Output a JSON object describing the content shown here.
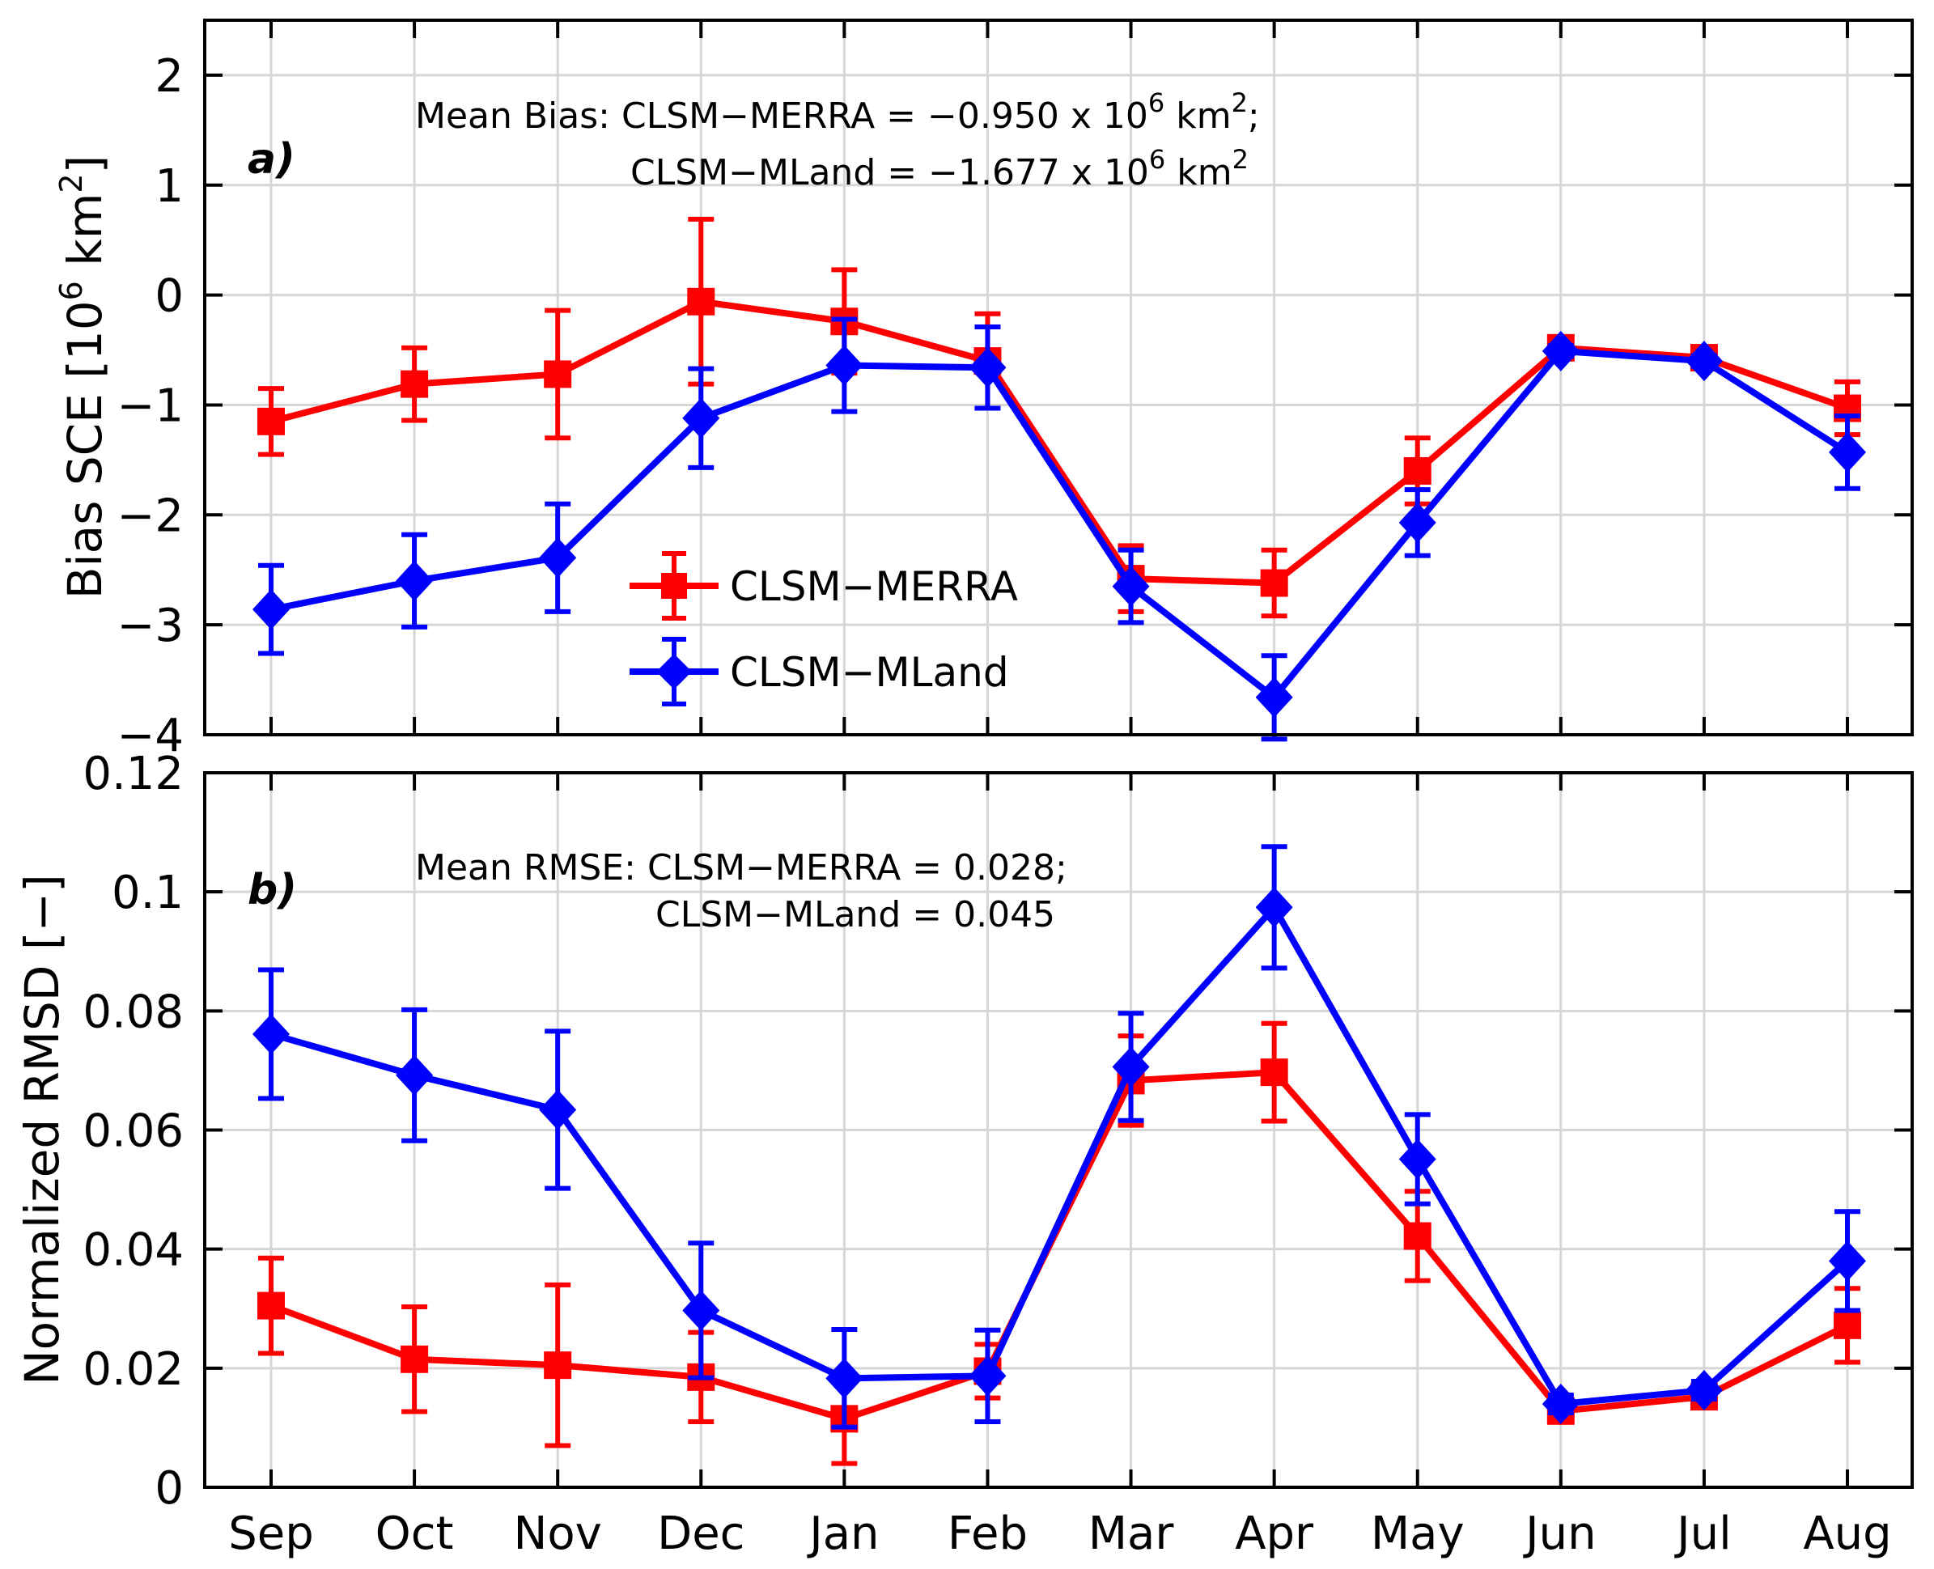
{
  "chart_data": [
    {
      "type": "line",
      "panel_label": "a)",
      "ylabel": "Bias SCE [10",
      "ylabel_sup": "6",
      "ylabel_tail": " km",
      "ylabel_sup2": "2",
      "ylabel_end": "]",
      "xlabel": "",
      "ylim": [
        -4,
        2.5
      ],
      "yticks": [
        -4,
        -3,
        -2,
        -1,
        0,
        1,
        2
      ],
      "ytick_labels": [
        "−4",
        "−3",
        "−2",
        "−1",
        "0",
        "1",
        "2"
      ],
      "grid": true,
      "categories": [
        "Sep",
        "Oct",
        "Nov",
        "Dec",
        "Jan",
        "Feb",
        "Mar",
        "Apr",
        "May",
        "Jun",
        "Jul",
        "Aug"
      ],
      "annotation": {
        "line1_prefix": "Mean Bias: CLSM−MERRA = −0.950 x 10",
        "line1_sup": "6",
        "line1_mid": " km",
        "line1_sup2": "2",
        "line1_end": ";",
        "line2_prefix": "CLSM−MLand  = −1.677 x 10",
        "line2_sup": "6",
        "line2_mid": " km",
        "line2_sup2": "2"
      },
      "legend": {
        "placement": "lower-center",
        "entries": [
          "CLSM−MERRA",
          "CLSM−MLand"
        ]
      },
      "series": [
        {
          "name": "CLSM−MERRA",
          "color": "#ff0000",
          "marker": "square",
          "values": [
            -1.15,
            -0.81,
            -0.72,
            -0.06,
            -0.24,
            -0.6,
            -2.58,
            -2.62,
            -1.6,
            -0.48,
            -0.57,
            -1.03
          ],
          "errors": [
            0.3,
            0.33,
            0.58,
            0.75,
            0.47,
            0.43,
            0.3,
            0.3,
            0.3,
            0.05,
            0.05,
            0.24
          ]
        },
        {
          "name": "CLSM−MLand",
          "color": "#0000ff",
          "marker": "diamond",
          "values": [
            -2.86,
            -2.6,
            -2.39,
            -1.12,
            -0.64,
            -0.66,
            -2.65,
            -3.66,
            -2.07,
            -0.51,
            -0.6,
            -1.43
          ],
          "errors": [
            0.4,
            0.42,
            0.49,
            0.45,
            0.42,
            0.37,
            0.33,
            0.38,
            0.3,
            0.05,
            0.05,
            0.33
          ]
        }
      ]
    },
    {
      "type": "line",
      "panel_label": "b)",
      "ylabel": "Normalized RMSD [−]",
      "xlabel": "",
      "ylim": [
        0,
        0.12
      ],
      "yticks": [
        0,
        0.02,
        0.04,
        0.06,
        0.08,
        0.1,
        0.12
      ],
      "ytick_labels": [
        "0",
        "0.02",
        "0.04",
        "0.06",
        "0.08",
        "0.1",
        "0.12"
      ],
      "grid": true,
      "categories": [
        "Sep",
        "Oct",
        "Nov",
        "Dec",
        "Jan",
        "Feb",
        "Mar",
        "Apr",
        "May",
        "Jun",
        "Jul",
        "Aug"
      ],
      "annotation": {
        "line1": "Mean RMSE: CLSM−MERRA = 0.028;",
        "line2": "CLSM−MLand = 0.045"
      },
      "series": [
        {
          "name": "CLSM−MERRA",
          "color": "#ff0000",
          "marker": "square",
          "values": [
            0.0305,
            0.0215,
            0.0205,
            0.0185,
            0.0115,
            0.0195,
            0.0683,
            0.0697,
            0.0422,
            0.0128,
            0.0152,
            0.0272
          ],
          "errors": [
            0.008,
            0.0088,
            0.0135,
            0.0075,
            0.0075,
            0.0045,
            0.0075,
            0.0082,
            0.0075,
            0.0012,
            0.0012,
            0.0062
          ]
        },
        {
          "name": "CLSM−MLand",
          "color": "#0000ff",
          "marker": "diamond",
          "values": [
            0.0761,
            0.0692,
            0.0634,
            0.0297,
            0.0183,
            0.0187,
            0.0706,
            0.0974,
            0.0551,
            0.014,
            0.0163,
            0.038
          ],
          "errors": [
            0.0108,
            0.011,
            0.0132,
            0.0113,
            0.0082,
            0.0077,
            0.009,
            0.0102,
            0.0075,
            0.0015,
            0.0015,
            0.0083
          ]
        }
      ]
    }
  ]
}
